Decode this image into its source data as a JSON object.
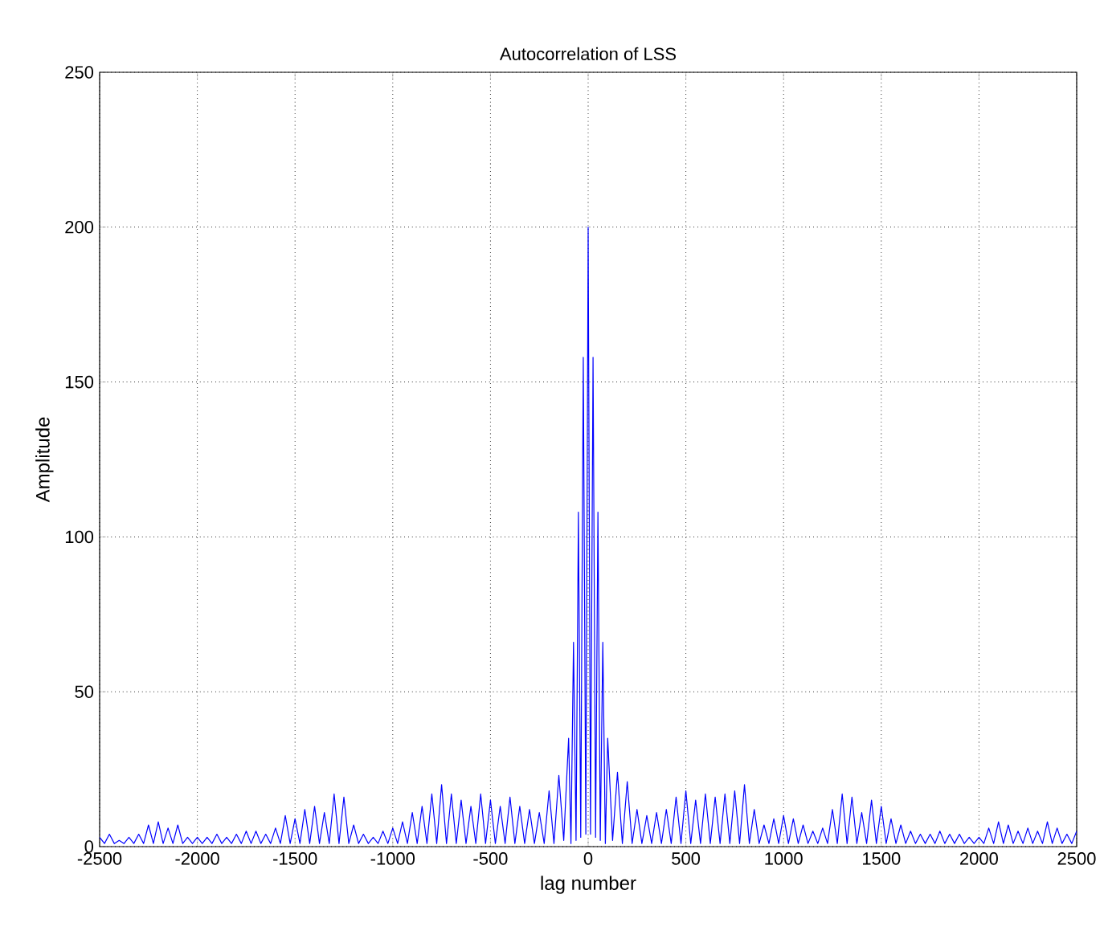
{
  "chart_data": {
    "type": "line",
    "title": "Autocorrelation of LSS",
    "xlabel": "lag number",
    "ylabel": "Amplitude",
    "xlim": [
      -2500,
      2500
    ],
    "ylim": [
      0,
      250
    ],
    "xticks": [
      -2500,
      -2000,
      -1500,
      -1000,
      -500,
      0,
      500,
      1000,
      1500,
      2000,
      2500
    ],
    "yticks": [
      0,
      50,
      100,
      150,
      200,
      250
    ],
    "grid": true,
    "series": [
      {
        "color": "#0000ff",
        "x": [
          -2500,
          -2475,
          -2450,
          -2425,
          -2400,
          -2375,
          -2350,
          -2325,
          -2300,
          -2275,
          -2250,
          -2225,
          -2200,
          -2175,
          -2150,
          -2125,
          -2100,
          -2075,
          -2050,
          -2025,
          -2000,
          -1975,
          -1950,
          -1925,
          -1900,
          -1875,
          -1850,
          -1825,
          -1800,
          -1775,
          -1750,
          -1725,
          -1700,
          -1675,
          -1650,
          -1625,
          -1600,
          -1575,
          -1550,
          -1525,
          -1500,
          -1475,
          -1450,
          -1425,
          -1400,
          -1375,
          -1350,
          -1325,
          -1300,
          -1275,
          -1250,
          -1225,
          -1200,
          -1175,
          -1150,
          -1125,
          -1100,
          -1075,
          -1050,
          -1025,
          -1000,
          -975,
          -950,
          -925,
          -900,
          -875,
          -850,
          -825,
          -800,
          -775,
          -750,
          -725,
          -700,
          -675,
          -650,
          -625,
          -600,
          -575,
          -550,
          -525,
          -500,
          -475,
          -450,
          -425,
          -400,
          -375,
          -350,
          -325,
          -300,
          -275,
          -250,
          -225,
          -200,
          -175,
          -150,
          -125,
          -100,
          -88,
          -75,
          -62,
          -50,
          -38,
          -25,
          -12,
          0,
          12,
          25,
          38,
          50,
          62,
          75,
          88,
          100,
          125,
          150,
          175,
          200,
          225,
          250,
          275,
          300,
          325,
          350,
          375,
          400,
          425,
          450,
          475,
          500,
          525,
          550,
          575,
          600,
          625,
          650,
          675,
          700,
          725,
          750,
          775,
          800,
          825,
          850,
          875,
          900,
          925,
          950,
          975,
          1000,
          1025,
          1050,
          1075,
          1100,
          1125,
          1150,
          1175,
          1200,
          1225,
          1250,
          1275,
          1300,
          1325,
          1350,
          1375,
          1400,
          1425,
          1450,
          1475,
          1500,
          1525,
          1550,
          1575,
          1600,
          1625,
          1650,
          1675,
          1700,
          1725,
          1750,
          1775,
          1800,
          1825,
          1850,
          1875,
          1900,
          1925,
          1950,
          1975,
          2000,
          2025,
          2050,
          2075,
          2100,
          2125,
          2150,
          2175,
          2200,
          2225,
          2250,
          2275,
          2300,
          2325,
          2350,
          2375,
          2400,
          2425,
          2450,
          2475,
          2500
        ],
        "values": [
          3,
          1,
          4,
          1,
          2,
          1,
          3,
          1,
          4,
          1,
          7,
          1,
          8,
          1,
          6,
          1,
          7,
          1,
          3,
          1,
          3,
          1,
          3,
          1,
          4,
          1,
          3,
          1,
          4,
          1,
          5,
          1,
          5,
          1,
          4,
          1,
          6,
          1,
          10,
          1,
          9,
          1,
          12,
          1,
          13,
          1,
          11,
          1,
          17,
          1,
          16,
          1,
          7,
          1,
          4,
          1,
          3,
          1,
          5,
          1,
          6,
          1,
          8,
          1,
          11,
          1,
          13,
          1,
          17,
          1,
          20,
          1,
          17,
          1,
          15,
          1,
          13,
          1,
          17,
          1,
          15,
          1,
          13,
          1,
          16,
          1,
          13,
          1,
          12,
          1,
          11,
          1,
          18,
          1,
          23,
          2,
          35,
          1,
          66,
          2,
          108,
          3,
          158,
          4,
          200,
          4,
          158,
          3,
          108,
          2,
          66,
          1,
          35,
          2,
          24,
          1,
          21,
          1,
          12,
          1,
          10,
          1,
          11,
          1,
          12,
          1,
          16,
          1,
          18,
          1,
          15,
          1,
          17,
          1,
          16,
          1,
          17,
          1,
          18,
          1,
          20,
          1,
          12,
          1,
          7,
          1,
          9,
          1,
          10,
          1,
          9,
          1,
          7,
          1,
          5,
          1,
          6,
          1,
          12,
          1,
          17,
          1,
          16,
          1,
          11,
          1,
          15,
          1,
          13,
          1,
          9,
          1,
          7,
          1,
          5,
          1,
          4,
          1,
          4,
          1,
          5,
          1,
          4,
          1,
          4,
          1,
          3,
          1,
          3,
          1,
          6,
          1,
          8,
          1,
          7,
          1,
          5,
          1,
          6,
          1,
          5,
          1,
          8,
          1,
          6,
          1,
          4,
          1,
          5
        ]
      }
    ]
  }
}
